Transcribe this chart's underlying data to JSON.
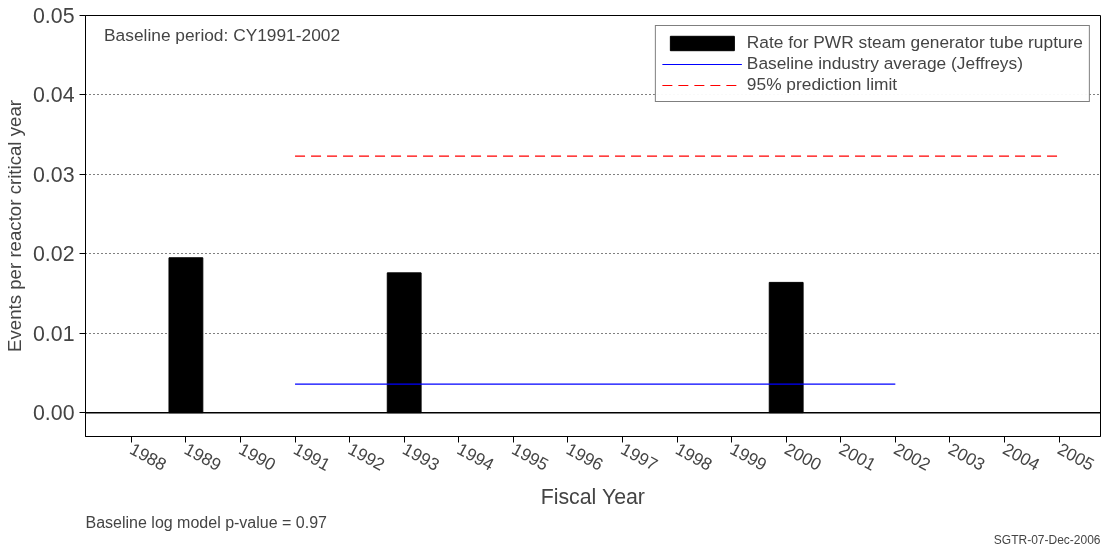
{
  "chart_data": {
    "type": "bar",
    "xlabel": "Fiscal Year",
    "ylabel": "Events per reactor critical year",
    "categories": [
      "1988",
      "1989",
      "1990",
      "1991",
      "1992",
      "1993",
      "1994",
      "1995",
      "1996",
      "1997",
      "1998",
      "1999",
      "2000",
      "2001",
      "2002",
      "2003",
      "2004",
      "2005"
    ],
    "series": [
      {
        "name": "Rate for PWR steam generator tube rupture",
        "color": "#000000",
        "values": [
          null,
          0.0195,
          null,
          null,
          null,
          0.0176,
          null,
          null,
          null,
          null,
          null,
          null,
          0.0164,
          null,
          null,
          null,
          null,
          null
        ]
      },
      {
        "name": "Baseline industry average (Jeffreys)",
        "type": "line",
        "line_style": "solid",
        "color": "#0000ff",
        "values": [
          null,
          null,
          null,
          0.0036,
          0.0036,
          0.0036,
          0.0036,
          0.0036,
          0.0036,
          0.0036,
          0.0036,
          0.0036,
          0.0036,
          0.0036,
          0.0036,
          null,
          null,
          null
        ]
      },
      {
        "name": "95% prediction limit",
        "type": "line",
        "line_style": "dashed",
        "color": "#ff0000",
        "values": [
          null,
          null,
          null,
          0.0323,
          0.0323,
          0.0323,
          0.0323,
          0.0323,
          0.0323,
          0.0323,
          0.0323,
          0.0323,
          0.0323,
          0.0323,
          0.0323,
          0.0323,
          0.0323,
          0.0323
        ]
      }
    ],
    "ylim": [
      -0.003,
      0.05
    ],
    "yticks": [
      {
        "value": 0,
        "label": "0.00"
      },
      0.01,
      0.02,
      0.03,
      0.04,
      0.05
    ],
    "grid": "y",
    "legend": "top right",
    "annotations": [
      "Baseline period:  CY1991-2002",
      "Baseline log model p-value = 0.97",
      "SGTR-07-Dec-2006"
    ]
  }
}
